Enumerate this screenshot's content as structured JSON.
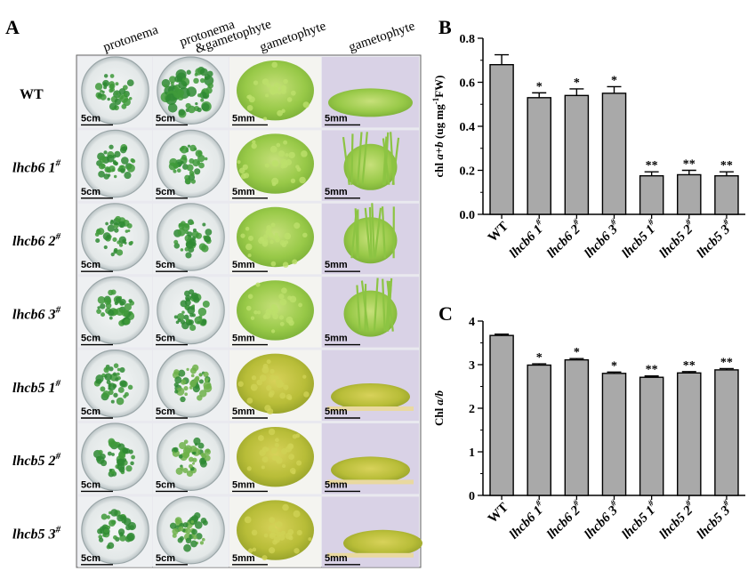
{
  "panel_a": {
    "letter": "A",
    "columns": [
      "protonema",
      "protonema\n&gametophyte",
      "gametophyte",
      "gametophyte"
    ],
    "rows": [
      {
        "label": "WT",
        "sup": "",
        "bars": [
          "5cm",
          "5cm",
          "5mm",
          "5mm"
        ]
      },
      {
        "label": "lhcb6 1",
        "sup": "#",
        "bars": [
          "5cm",
          "5cm",
          "5mm",
          "5mm"
        ]
      },
      {
        "label": "lhcb6 2",
        "sup": "#",
        "bars": [
          "5cm",
          "5cm",
          "5mm",
          "5mm"
        ]
      },
      {
        "label": "lhcb6 3",
        "sup": "#",
        "bars": [
          "5cm",
          "5cm",
          "5mm",
          "5mm"
        ]
      },
      {
        "label": "lhcb5 1",
        "sup": "#",
        "bars": [
          "5cm",
          "5cm",
          "5mm",
          "5mm"
        ]
      },
      {
        "label": "lhcb5 2",
        "sup": "#",
        "bars": [
          "5cm",
          "5cm",
          "5mm",
          "5mm"
        ]
      },
      {
        "label": "lhcb5 3",
        "sup": "#",
        "bars": [
          "5cm",
          "5cm",
          "5mm",
          "5mm"
        ]
      }
    ],
    "colors": {
      "dish_green": "#3f9a3a",
      "plant_green": "#8fc94a",
      "yellow_green": "#b9c63d",
      "bg_lavender": "#d9d2e6"
    }
  },
  "chart_data": [
    {
      "panel": "B",
      "type": "bar",
      "categories": [
        "WT",
        "lhcb6 1",
        "lhcb6 2",
        "lhcb6 3",
        "lhcb5 1",
        "lhcb5 2",
        "lhcb5 3"
      ],
      "category_sup": [
        "",
        "#",
        "#",
        "#",
        "#",
        "#",
        "#"
      ],
      "values": [
        0.68,
        0.53,
        0.54,
        0.55,
        0.175,
        0.18,
        0.175
      ],
      "errors": [
        0.045,
        0.022,
        0.03,
        0.03,
        0.018,
        0.02,
        0.018
      ],
      "significance": [
        "",
        "*",
        "*",
        "*",
        "**",
        "**",
        "**"
      ],
      "ylabel_parts": {
        "pre": "chl ",
        "ital": "a+b",
        "post1": " (ug mg",
        "sup": "-1",
        "post2": "FW)"
      },
      "ylim": [
        0,
        0.8
      ],
      "yticks": [
        "0.0",
        "0.2",
        "0.4",
        "0.6",
        "0.8"
      ],
      "bar_color": "#a9a9a9",
      "grid": false
    },
    {
      "panel": "C",
      "type": "bar",
      "categories": [
        "WT",
        "lhcb6 1",
        "lhcb6 2",
        "lhcb6 3",
        "lhcb5 1",
        "lhcb5 2",
        "lhcb5 3"
      ],
      "category_sup": [
        "",
        "#",
        "#",
        "#",
        "#",
        "#",
        "#"
      ],
      "values": [
        3.67,
        2.99,
        3.11,
        2.8,
        2.71,
        2.81,
        2.88
      ],
      "errors": [
        0.03,
        0.03,
        0.03,
        0.03,
        0.03,
        0.03,
        0.03
      ],
      "significance": [
        "",
        "*",
        "*",
        "*",
        "**",
        "**",
        "**"
      ],
      "ylabel_parts": {
        "pre": "Chl ",
        "ital": "a/b",
        "post1": "",
        "sup": "",
        "post2": ""
      },
      "ylim": [
        0,
        4
      ],
      "yticks": [
        "0",
        "1",
        "2",
        "3",
        "4"
      ],
      "bar_color": "#a9a9a9",
      "grid": false
    }
  ]
}
